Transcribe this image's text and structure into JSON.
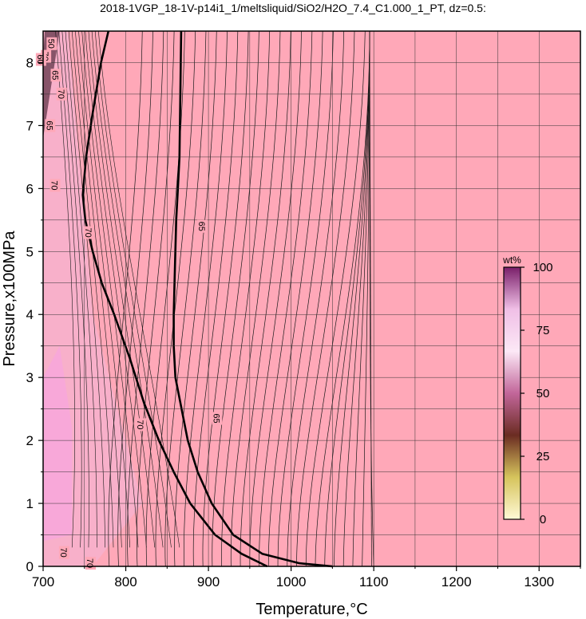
{
  "chart_data": {
    "type": "heatmap",
    "title": "2018-1VGP_18-1V-p14i1_1/meltsliquid/SiO2/H2O_7.4_C1.000_1_PT, dz=0.5:",
    "xlabel": "Temperature,°C",
    "ylabel": "Pressure,x100MPa",
    "xlim": [
      700,
      1350
    ],
    "ylim": [
      0,
      8.5
    ],
    "x_ticks": [
      700,
      800,
      900,
      1000,
      1100,
      1200,
      1300
    ],
    "y_ticks": [
      0,
      1,
      2,
      3,
      4,
      5,
      6,
      7,
      8
    ],
    "grid": true,
    "background_color": "#ffa8b8",
    "colorbar": {
      "label": "wt%",
      "ticks": [
        0,
        25,
        50,
        75,
        100
      ],
      "range": [
        0,
        100
      ],
      "placement": "right, inside plot",
      "colors": [
        "#fff9d6",
        "#d6c45c",
        "#6b2c22",
        "#c2669a",
        "#fce8f6",
        "#f0bfe6",
        "#7a1f6a"
      ]
    },
    "contour_labels": [
      {
        "text": "70",
        "x": 703,
        "y": 8.1
      },
      {
        "text": "50",
        "x": 710,
        "y": 8.3
      },
      {
        "text": "60",
        "x": 697,
        "y": 8.05
      },
      {
        "text": "65",
        "x": 715,
        "y": 7.8
      },
      {
        "text": "70",
        "x": 722,
        "y": 7.5
      },
      {
        "text": "65",
        "x": 708,
        "y": 7.0
      },
      {
        "text": "70",
        "x": 714,
        "y": 6.05
      },
      {
        "text": "70",
        "x": 755,
        "y": 5.3
      },
      {
        "text": "65",
        "x": 892,
        "y": 5.4
      },
      {
        "text": "70",
        "x": 818,
        "y": 2.25
      },
      {
        "text": "65",
        "x": 910,
        "y": 2.35
      },
      {
        "text": "70",
        "x": 725,
        "y": 0.22
      },
      {
        "text": "70",
        "x": 757,
        "y": 0.05
      }
    ],
    "bold_contours": [
      {
        "level": 70,
        "points": [
          [
            779,
            8.5
          ],
          [
            770,
            8.0
          ],
          [
            760,
            7.2
          ],
          [
            752,
            6.5
          ],
          [
            748,
            5.9
          ],
          [
            751,
            5.5
          ],
          [
            760,
            5.0
          ],
          [
            771,
            4.5
          ],
          [
            786,
            4.0
          ],
          [
            805,
            3.3
          ],
          [
            822,
            2.6
          ],
          [
            840,
            2.0
          ],
          [
            858,
            1.5
          ],
          [
            878,
            1.0
          ],
          [
            908,
            0.5
          ],
          [
            940,
            0.2
          ],
          [
            971,
            0.0
          ]
        ]
      },
      {
        "level": 65,
        "points": [
          [
            867,
            8.5
          ],
          [
            866,
            7.5
          ],
          [
            865,
            6.5
          ],
          [
            863,
            6.0
          ],
          [
            861,
            5.5
          ],
          [
            859,
            4.5
          ],
          [
            858,
            4.0
          ],
          [
            858,
            3.5
          ],
          [
            860,
            3.0
          ],
          [
            866,
            2.6
          ],
          [
            875,
            2.0
          ],
          [
            887,
            1.5
          ],
          [
            904,
            1.0
          ],
          [
            930,
            0.5
          ],
          [
            965,
            0.2
          ],
          [
            1010,
            0.05
          ],
          [
            1050,
            0.0
          ]
        ]
      }
    ],
    "thin_contour_anchors": {
      "left_start_T": 705,
      "right_end_T": 1100,
      "count_left": 14,
      "count_right": 30
    }
  }
}
